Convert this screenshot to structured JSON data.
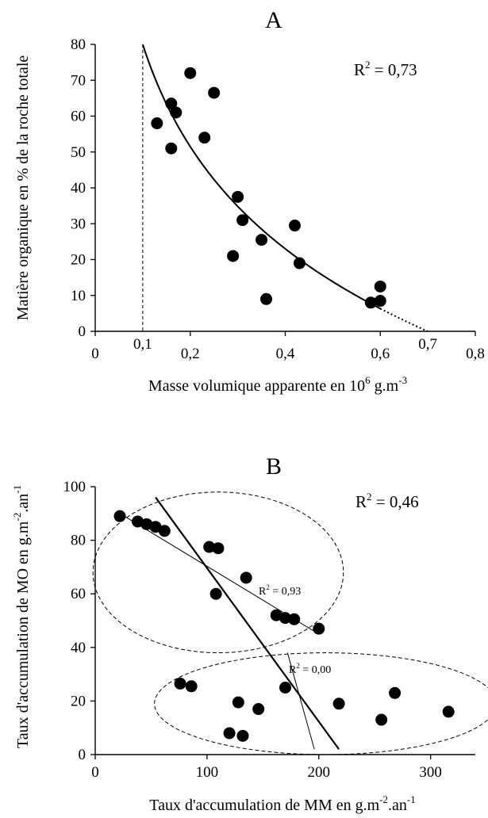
{
  "chart_data": [
    {
      "type": "scatter",
      "panel_label": "A",
      "ylabel": "Matière organique en % de la roche totale",
      "xlabel_parts": [
        "Masse volumique apparente en 10",
        "6",
        " g.m",
        "-3"
      ],
      "xlim": [
        0,
        0.8
      ],
      "ylim": [
        0,
        80
      ],
      "x_tick_labels": [
        "0",
        "0,2",
        "0,4",
        "0,6",
        "0,8"
      ],
      "x_extra_tick_labels": [
        "0,1",
        "0,7"
      ],
      "y_tick_labels": [
        "0",
        "10",
        "20",
        "30",
        "40",
        "50",
        "60",
        "70",
        "80"
      ],
      "r2_parts": [
        "R",
        "2",
        " = 0,73"
      ],
      "points": [
        {
          "x": 0.13,
          "y": 58
        },
        {
          "x": 0.16,
          "y": 63.5
        },
        {
          "x": 0.17,
          "y": 61
        },
        {
          "x": 0.16,
          "y": 51
        },
        {
          "x": 0.2,
          "y": 72
        },
        {
          "x": 0.25,
          "y": 66.5
        },
        {
          "x": 0.23,
          "y": 54
        },
        {
          "x": 0.3,
          "y": 37.5
        },
        {
          "x": 0.31,
          "y": 31
        },
        {
          "x": 0.29,
          "y": 21
        },
        {
          "x": 0.35,
          "y": 25.5
        },
        {
          "x": 0.36,
          "y": 9
        },
        {
          "x": 0.42,
          "y": 29.5
        },
        {
          "x": 0.43,
          "y": 19
        },
        {
          "x": 0.58,
          "y": 8
        },
        {
          "x": 0.6,
          "y": 12.5
        },
        {
          "x": 0.6,
          "y": 8.5
        }
      ],
      "fit_curve": {
        "type": "logarithmic",
        "x_start": 0.1,
        "x_end": 0.7,
        "dotted_from_x": 0.6
      },
      "vertical_dashed_line_x": 0.1,
      "grid": false
    },
    {
      "type": "scatter",
      "panel_label": "B",
      "ylabel_parts": [
        "Taux d'accumulation de MO en g.m",
        "-2",
        ".an",
        "-1"
      ],
      "xlabel_parts": [
        "Taux d'accumulation de MM en g.m",
        "-2",
        ".an",
        "-1"
      ],
      "xlim": [
        0,
        340
      ],
      "ylim": [
        0,
        100
      ],
      "x_tick_labels": [
        "0",
        "100",
        "200",
        "300"
      ],
      "y_tick_labels": [
        "0",
        "20",
        "40",
        "60",
        "80",
        "100"
      ],
      "r2_main_parts": [
        "R",
        "2",
        " = 0,46"
      ],
      "r2_upper_parts": [
        "R",
        "2",
        " = 0,93"
      ],
      "r2_lower_parts": [
        "R",
        "2",
        " = 0,00"
      ],
      "points": [
        {
          "x": 22,
          "y": 89
        },
        {
          "x": 38,
          "y": 87
        },
        {
          "x": 46,
          "y": 86
        },
        {
          "x": 54,
          "y": 85
        },
        {
          "x": 62,
          "y": 83.5
        },
        {
          "x": 102,
          "y": 77.5
        },
        {
          "x": 110,
          "y": 77
        },
        {
          "x": 108,
          "y": 60
        },
        {
          "x": 135,
          "y": 66
        },
        {
          "x": 162,
          "y": 52
        },
        {
          "x": 170,
          "y": 51
        },
        {
          "x": 178,
          "y": 50.5
        },
        {
          "x": 200,
          "y": 47
        },
        {
          "x": 76,
          "y": 26.5
        },
        {
          "x": 86,
          "y": 25.5
        },
        {
          "x": 128,
          "y": 19.5
        },
        {
          "x": 146,
          "y": 17
        },
        {
          "x": 170,
          "y": 25
        },
        {
          "x": 218,
          "y": 19
        },
        {
          "x": 120,
          "y": 8
        },
        {
          "x": 132,
          "y": 7
        },
        {
          "x": 256,
          "y": 13
        },
        {
          "x": 268,
          "y": 23
        },
        {
          "x": 316,
          "y": 16
        }
      ],
      "fit_lines": [
        {
          "name": "global",
          "from": [
            54,
            96
          ],
          "to": [
            218,
            2
          ]
        },
        {
          "name": "upper",
          "from": [
            26,
            89
          ],
          "to": [
            200,
            45
          ]
        },
        {
          "name": "lower",
          "from": [
            172,
            38
          ],
          "to": [
            196,
            2
          ]
        }
      ],
      "clusters": [
        {
          "name": "upper",
          "cx": 110,
          "cy": 68,
          "rx": 112,
          "ry": 30
        },
        {
          "name": "lower",
          "cx": 206,
          "cy": 19,
          "rx": 153,
          "ry": 19
        }
      ],
      "grid": false
    }
  ]
}
